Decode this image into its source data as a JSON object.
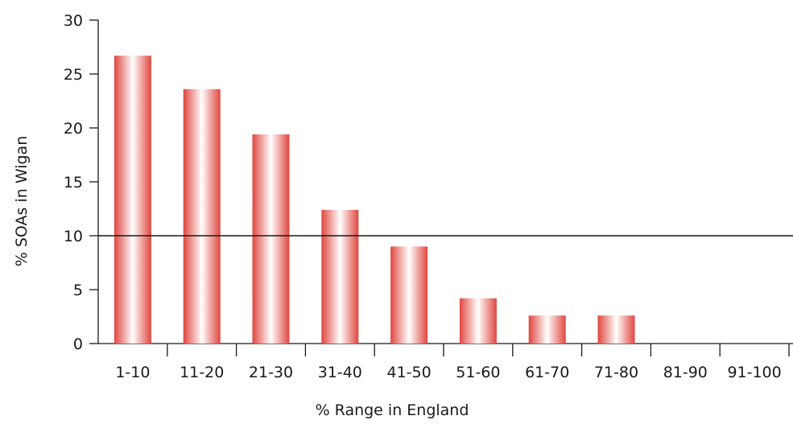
{
  "chart_data": {
    "type": "bar",
    "title": "",
    "xlabel": "% Range in England",
    "ylabel": "% SOAs in Wigan",
    "categories": [
      "1-10",
      "11-20",
      "21-30",
      "31-40",
      "41-50",
      "51-60",
      "61-70",
      "71-80",
      "81-90",
      "91-100"
    ],
    "values": [
      26.7,
      23.6,
      19.4,
      12.4,
      9.0,
      4.2,
      2.6,
      2.6,
      0,
      0
    ],
    "ylim": [
      0,
      30
    ],
    "yticks": [
      "0",
      "5",
      "10",
      "15",
      "20",
      "25",
      "30"
    ],
    "reference_line": 10,
    "grid": false,
    "legend": "none",
    "colors": {
      "bar_edge": "#e0463f",
      "bar_center": "#ffffff",
      "axis": "#1a1a1a"
    }
  }
}
